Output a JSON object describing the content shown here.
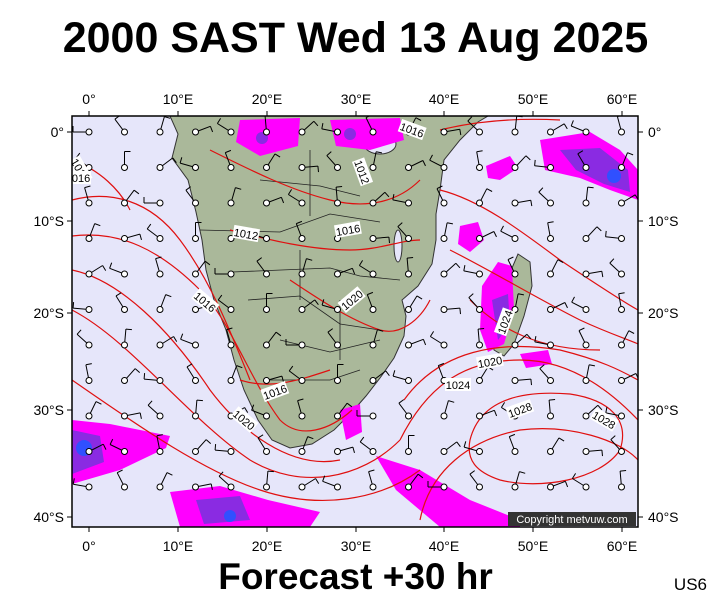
{
  "header": {
    "title": "2000 SAST Wed 13 Aug 2025"
  },
  "footer": {
    "forecast": "Forecast +30 hr",
    "region_code": "US6"
  },
  "map": {
    "lon_labels": [
      "0°",
      "10°E",
      "20°E",
      "30°E",
      "40°E",
      "50°E",
      "60°E"
    ],
    "lat_labels": [
      "0°",
      "10°S",
      "20°S",
      "30°S",
      "40°S"
    ],
    "isobar_labels": [
      "1016",
      "1012",
      "1016",
      "1012",
      "1016",
      "1016",
      "1020",
      "1016",
      "1020",
      "1024",
      "1020",
      "1024",
      "1028",
      "1028",
      "1016"
    ],
    "copyright": "Copyright metvuw.com",
    "colors": {
      "ocean": "#e6e6fa",
      "land": "#aab89a",
      "isobar": "#e01010",
      "rain_magenta": "#ff00ff",
      "rain_purple": "#8a2be2",
      "rain_blue": "#3050ff"
    }
  }
}
